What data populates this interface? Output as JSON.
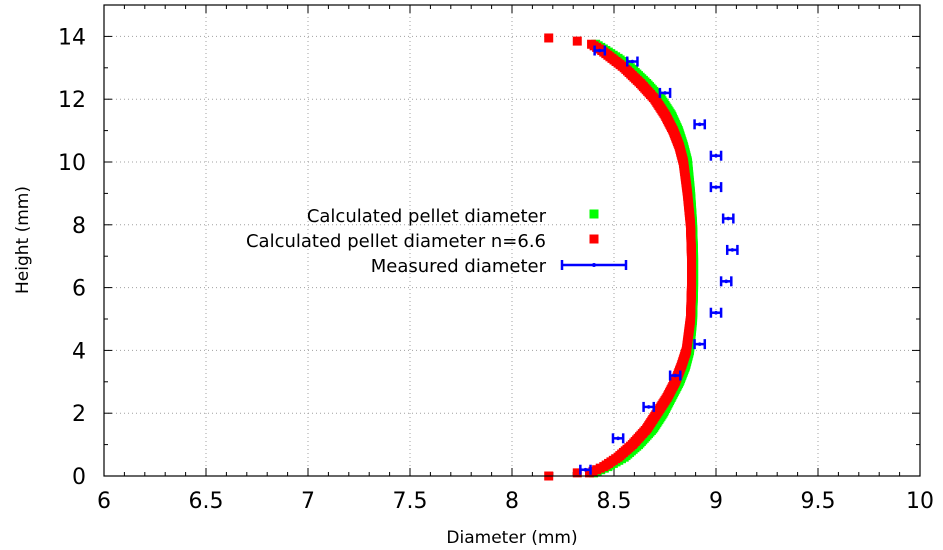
{
  "chart_data": {
    "type": "scatter",
    "xlabel": "Diameter (mm)",
    "ylabel": "Height (mm)",
    "xlim": [
      6,
      10
    ],
    "ylim": [
      0,
      15
    ],
    "xticks": [
      6,
      6.5,
      7,
      7.5,
      8,
      8.5,
      9,
      9.5,
      10
    ],
    "xtick_labels": [
      "6",
      "6.5",
      "7",
      "7.5",
      "8",
      "8.5",
      "9",
      "9.5",
      "10"
    ],
    "yticks": [
      0,
      2,
      4,
      6,
      8,
      10,
      12,
      14
    ],
    "ytick_labels": [
      "0",
      "2",
      "4",
      "6",
      "8",
      "10",
      "12",
      "14"
    ],
    "grid": true,
    "legend_position": "center-left",
    "colors": {
      "calc": "#00ff00",
      "calc_n66": "#ff0000",
      "measured": "#0000ff",
      "grid": "#a0a0a0"
    },
    "series": [
      {
        "name": "Calculated pellet diameter",
        "marker": "square",
        "color": "#00ff00",
        "curve": {
          "heights": [
            0.1,
            0.3,
            0.6,
            1.0,
            1.5,
            2.0,
            2.5,
            3.0,
            3.5,
            4.0,
            5.0,
            6.0,
            7.0,
            8.0,
            9.0,
            10.0,
            10.5,
            11.0,
            11.5,
            12.0,
            12.5,
            13.0,
            13.3,
            13.55,
            13.75
          ],
          "diameters": [
            8.4,
            8.47,
            8.55,
            8.62,
            8.69,
            8.74,
            8.78,
            8.82,
            8.85,
            8.87,
            8.885,
            8.89,
            8.89,
            8.885,
            8.875,
            8.86,
            8.84,
            8.815,
            8.78,
            8.73,
            8.66,
            8.58,
            8.52,
            8.46,
            8.41
          ]
        }
      },
      {
        "name": "Calculated pellet diameter n=6.6",
        "marker": "square",
        "color": "#ff0000",
        "curve": {
          "heights": [
            0.1,
            0.3,
            0.6,
            1.0,
            1.5,
            2.0,
            2.5,
            3.0,
            3.5,
            4.0,
            5.0,
            6.0,
            7.0,
            8.0,
            9.0,
            10.0,
            10.5,
            11.0,
            11.5,
            12.0,
            12.5,
            13.0,
            13.3,
            13.55,
            13.75
          ],
          "diameters": [
            8.38,
            8.45,
            8.52,
            8.59,
            8.66,
            8.71,
            8.76,
            8.8,
            8.83,
            8.855,
            8.875,
            8.88,
            8.88,
            8.875,
            8.86,
            8.84,
            8.82,
            8.79,
            8.75,
            8.7,
            8.63,
            8.55,
            8.49,
            8.44,
            8.39
          ]
        },
        "outliers": [
          {
            "x": 8.18,
            "y": 0.0
          },
          {
            "x": 8.32,
            "y": 0.1
          },
          {
            "x": 8.18,
            "y": 13.95
          },
          {
            "x": 8.32,
            "y": 13.85
          }
        ]
      },
      {
        "name": "Measured diameter",
        "marker": "errorbar",
        "color": "#0000ff",
        "points": [
          {
            "x": 8.36,
            "y": 0.2
          },
          {
            "x": 8.52,
            "y": 1.2
          },
          {
            "x": 8.67,
            "y": 2.2
          },
          {
            "x": 8.8,
            "y": 3.2
          },
          {
            "x": 8.92,
            "y": 4.2
          },
          {
            "x": 9.0,
            "y": 5.2
          },
          {
            "x": 9.05,
            "y": 6.2
          },
          {
            "x": 9.08,
            "y": 7.2
          },
          {
            "x": 9.06,
            "y": 8.2
          },
          {
            "x": 9.0,
            "y": 9.2
          },
          {
            "x": 9.0,
            "y": 10.2
          },
          {
            "x": 8.92,
            "y": 11.2
          },
          {
            "x": 8.75,
            "y": 12.2
          },
          {
            "x": 8.59,
            "y": 13.2
          },
          {
            "x": 8.43,
            "y": 13.55
          }
        ],
        "xerr": 0.025
      }
    ]
  }
}
